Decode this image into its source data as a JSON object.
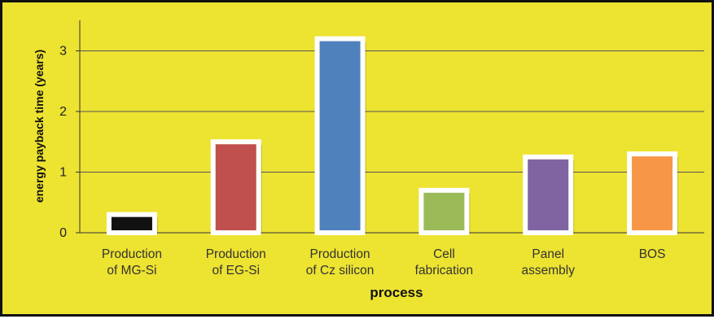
{
  "chart_data": {
    "type": "bar",
    "title": "",
    "xlabel": "process",
    "ylabel": "energy payback time (years)",
    "ylim": [
      0,
      3.5
    ],
    "yticks": [
      "0",
      "1",
      "2",
      "3"
    ],
    "grid": true,
    "legend": "none",
    "categories": [
      [
        "Production",
        "of MG-Si"
      ],
      [
        "Production",
        "of EG-Si"
      ],
      [
        "Production",
        "of Cz silicon"
      ],
      [
        "Cell",
        "fabrication"
      ],
      [
        "Panel",
        "assembly"
      ],
      [
        "BOS"
      ]
    ],
    "values": [
      0.3,
      1.5,
      3.2,
      0.7,
      1.25,
      1.3
    ],
    "colors": [
      "#111111",
      "#c0504d",
      "#4f81bd",
      "#9bbb59",
      "#8064a2",
      "#f79646"
    ],
    "background_color": "#ede331"
  }
}
